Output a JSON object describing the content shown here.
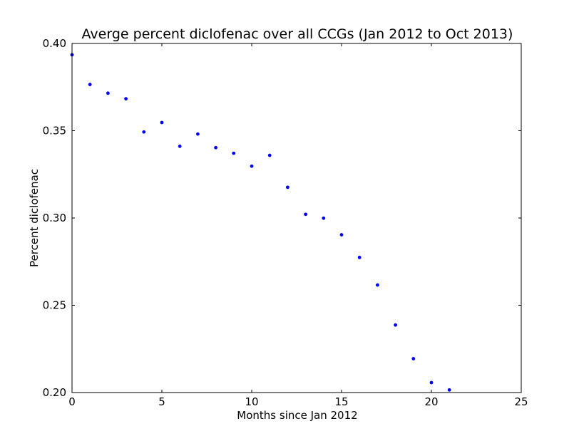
{
  "chart_data": {
    "type": "scatter",
    "title": "Averge percent diclofenac over all CCGs (Jan 2012 to Oct 2013)",
    "xlabel": "Months since Jan 2012",
    "ylabel": "Percent diclofenac",
    "xlim": [
      0,
      25
    ],
    "ylim": [
      0.2,
      0.4
    ],
    "xticks": [
      0,
      5,
      10,
      15,
      20,
      25
    ],
    "xtick_labels": [
      "0",
      "5",
      "10",
      "15",
      "20",
      "25"
    ],
    "yticks": [
      0.2,
      0.25,
      0.3,
      0.35,
      0.4
    ],
    "ytick_labels": [
      "0.20",
      "0.25",
      "0.30",
      "0.35",
      "0.40"
    ],
    "grid": false,
    "marker_color": "#0000ff",
    "x": [
      0,
      1,
      2,
      3,
      4,
      5,
      6,
      7,
      8,
      9,
      10,
      11,
      12,
      13,
      14,
      15,
      16,
      17,
      18,
      19,
      20,
      21
    ],
    "y": [
      0.3935,
      0.3765,
      0.3715,
      0.3683,
      0.3493,
      0.3547,
      0.3411,
      0.3481,
      0.3403,
      0.3371,
      0.3297,
      0.3359,
      0.3176,
      0.3021,
      0.2999,
      0.2904,
      0.2774,
      0.2616,
      0.2387,
      0.2194,
      0.2057,
      0.2015
    ]
  }
}
